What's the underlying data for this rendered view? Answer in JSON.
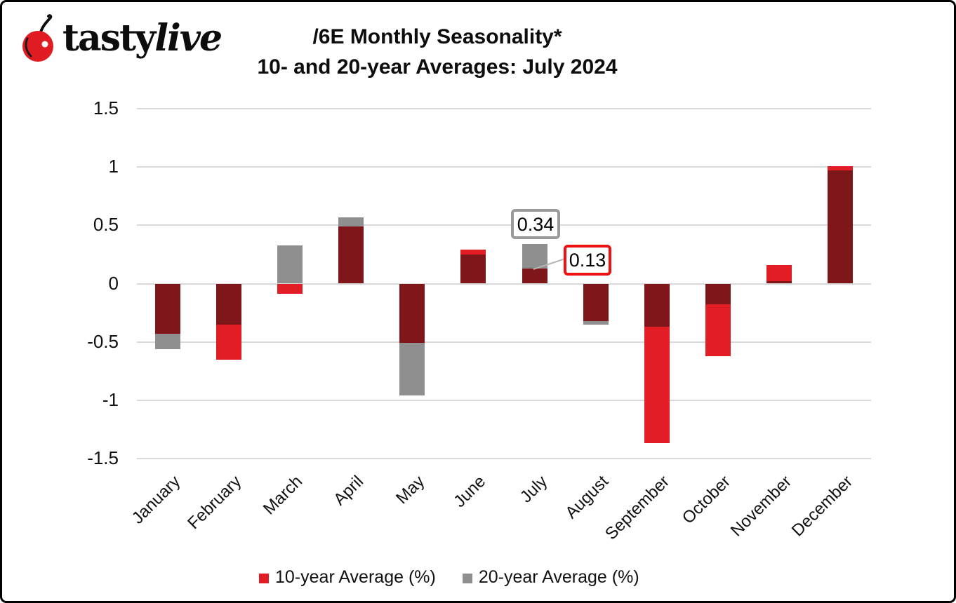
{
  "logo": {
    "part1": "tasty",
    "part2": "live"
  },
  "title": {
    "line1": "/6E Monthly Seasonality*",
    "line2": "10- and 20-year Averages: July 2024"
  },
  "chart_data": {
    "type": "bar",
    "categories": [
      "January",
      "February",
      "March",
      "April",
      "May",
      "June",
      "July",
      "August",
      "September",
      "October",
      "November",
      "December"
    ],
    "series": [
      {
        "name": "10-year Average (%)",
        "color": "#e21d26",
        "values": [
          -0.43,
          -0.65,
          -0.09,
          0.49,
          -0.51,
          0.29,
          0.13,
          -0.32,
          -1.37,
          -0.62,
          0.16,
          1.01
        ]
      },
      {
        "name": "20-year Average (%)",
        "color": "#8f8f8f",
        "values": [
          -0.56,
          -0.35,
          0.33,
          0.57,
          -0.96,
          0.25,
          0.34,
          -0.35,
          -0.37,
          -0.18,
          0.02,
          0.97
        ]
      }
    ],
    "overlap_color": "#7f171a",
    "ylim": [
      -1.5,
      1.5
    ],
    "ytick_values": [
      1.5,
      1,
      0.5,
      0,
      -0.5,
      -1,
      -1.5
    ],
    "yticks": [
      "1.5",
      "1",
      "0.5",
      "0",
      "-0.5",
      "-1",
      "-1.5"
    ],
    "grid": true,
    "legend_position": "bottom",
    "annotations": [
      {
        "text": "0.34",
        "series": "20-year Average (%)",
        "month": "July"
      },
      {
        "text": "0.13",
        "series": "10-year Average (%)",
        "month": "July"
      }
    ]
  },
  "legend": {
    "items": [
      {
        "label": "10-year Average (%)"
      },
      {
        "label": "20-year Average (%)"
      }
    ]
  },
  "colors": {
    "bar_red": "#e21d26",
    "bar_gray": "#8f8f8f",
    "bar_overlap": "#7f171a",
    "gridline": "#d9d9d9",
    "callout_gray_border": "#9a9a9a",
    "callout_red_border": "#ee1111",
    "cherry_red": "#e01b22"
  }
}
